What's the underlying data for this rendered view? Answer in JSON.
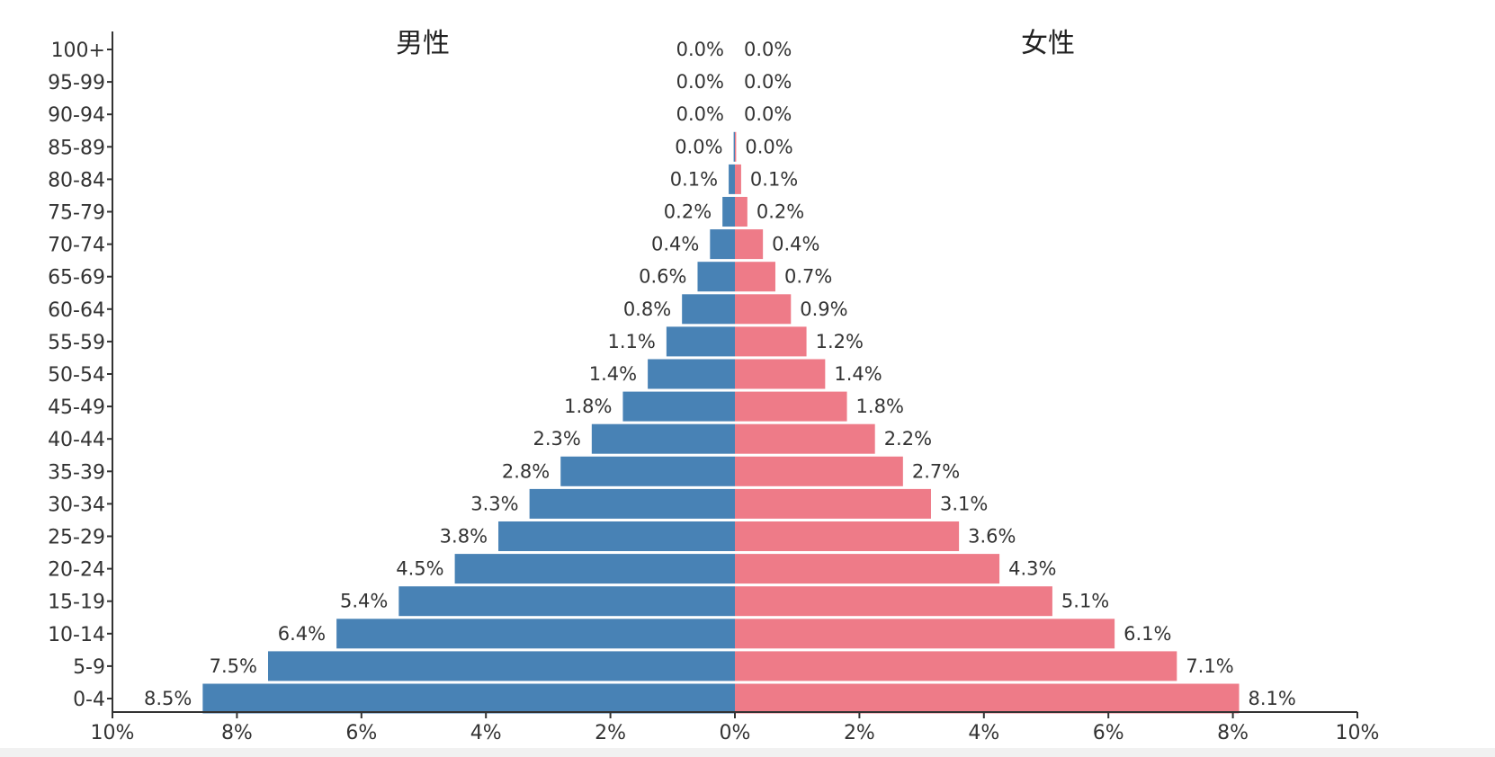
{
  "chart_data": {
    "type": "bar",
    "orientation": "horizontal",
    "layout": "population-pyramid",
    "categories": [
      "100+",
      "95-99",
      "90-94",
      "85-89",
      "80-84",
      "75-79",
      "70-74",
      "65-69",
      "60-64",
      "55-59",
      "50-54",
      "45-49",
      "40-44",
      "35-39",
      "30-34",
      "25-29",
      "20-24",
      "15-19",
      "10-14",
      "5-9",
      "0-4"
    ],
    "series": [
      {
        "name": "男性",
        "color": "#4882b5",
        "values": [
          0.0,
          0.0,
          0.0,
          0.02,
          0.1,
          0.2,
          0.4,
          0.6,
          0.85,
          1.1,
          1.4,
          1.8,
          2.3,
          2.8,
          3.3,
          3.8,
          4.5,
          5.4,
          6.4,
          7.5,
          8.55
        ],
        "labels": [
          "0.0%",
          "0.0%",
          "0.0%",
          "0.0%",
          "0.1%",
          "0.2%",
          "0.4%",
          "0.6%",
          "0.8%",
          "1.1%",
          "1.4%",
          "1.8%",
          "2.3%",
          "2.8%",
          "3.3%",
          "3.8%",
          "4.5%",
          "5.4%",
          "6.4%",
          "7.5%",
          "8.5%"
        ]
      },
      {
        "name": "女性",
        "color": "#ee7b88",
        "values": [
          0.0,
          0.0,
          0.0,
          0.02,
          0.1,
          0.2,
          0.45,
          0.65,
          0.9,
          1.15,
          1.45,
          1.8,
          2.25,
          2.7,
          3.15,
          3.6,
          4.25,
          5.1,
          6.1,
          7.1,
          8.1
        ],
        "labels": [
          "0.0%",
          "0.0%",
          "0.0%",
          "0.0%",
          "0.1%",
          "0.2%",
          "0.4%",
          "0.7%",
          "0.9%",
          "1.2%",
          "1.4%",
          "1.8%",
          "2.2%",
          "2.7%",
          "3.1%",
          "3.6%",
          "4.3%",
          "5.1%",
          "6.1%",
          "7.1%",
          "8.1%"
        ]
      }
    ],
    "x_ticks": [
      "10%",
      "8%",
      "6%",
      "4%",
      "2%",
      "0%",
      "2%",
      "4%",
      "6%",
      "8%",
      "10%"
    ],
    "xlim": [
      -10,
      10
    ],
    "grid": false,
    "legend": "top"
  }
}
